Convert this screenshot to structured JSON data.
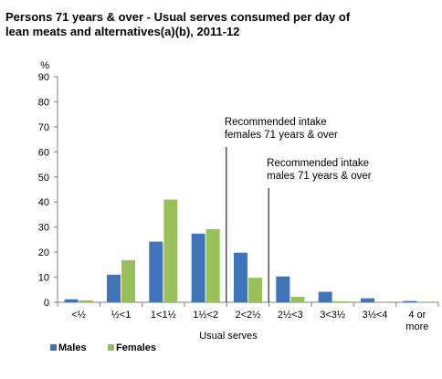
{
  "title_line1": "Persons 71 years & over - Usual serves consumed per day of",
  "title_line2": "lean meats and alternatives(a)(b), 2011-12",
  "chart_data": {
    "type": "bar",
    "categories": [
      "<½",
      "½<1",
      "1<1½",
      "1½<2",
      "2<2½",
      "2½<3",
      "3<3½",
      "3½<4",
      "4 or more"
    ],
    "series": [
      {
        "name": "Males",
        "color": "#3f74b8",
        "values": [
          1.2,
          11,
          24.2,
          27.4,
          19.8,
          10.3,
          4.2,
          1.6,
          0.5
        ]
      },
      {
        "name": "Females",
        "color": "#9ac05a",
        "values": [
          0.8,
          16.8,
          41,
          29.2,
          9.8,
          2.2,
          0.4,
          0.1,
          0.1
        ]
      }
    ],
    "xlabel": "Usual serves",
    "ylabel": "%",
    "ylim": [
      0,
      90
    ],
    "yticks": [
      0,
      10,
      20,
      30,
      40,
      50,
      60,
      70,
      80,
      90
    ],
    "grid": false,
    "legend_position": "bottom-left",
    "annotations": [
      {
        "lines": [
          "Recommended intake",
          "females 71 years & over"
        ],
        "x_boundary": 4
      },
      {
        "lines": [
          "Recommended intake",
          "males 71 years & over"
        ],
        "x_boundary": 5
      }
    ]
  }
}
